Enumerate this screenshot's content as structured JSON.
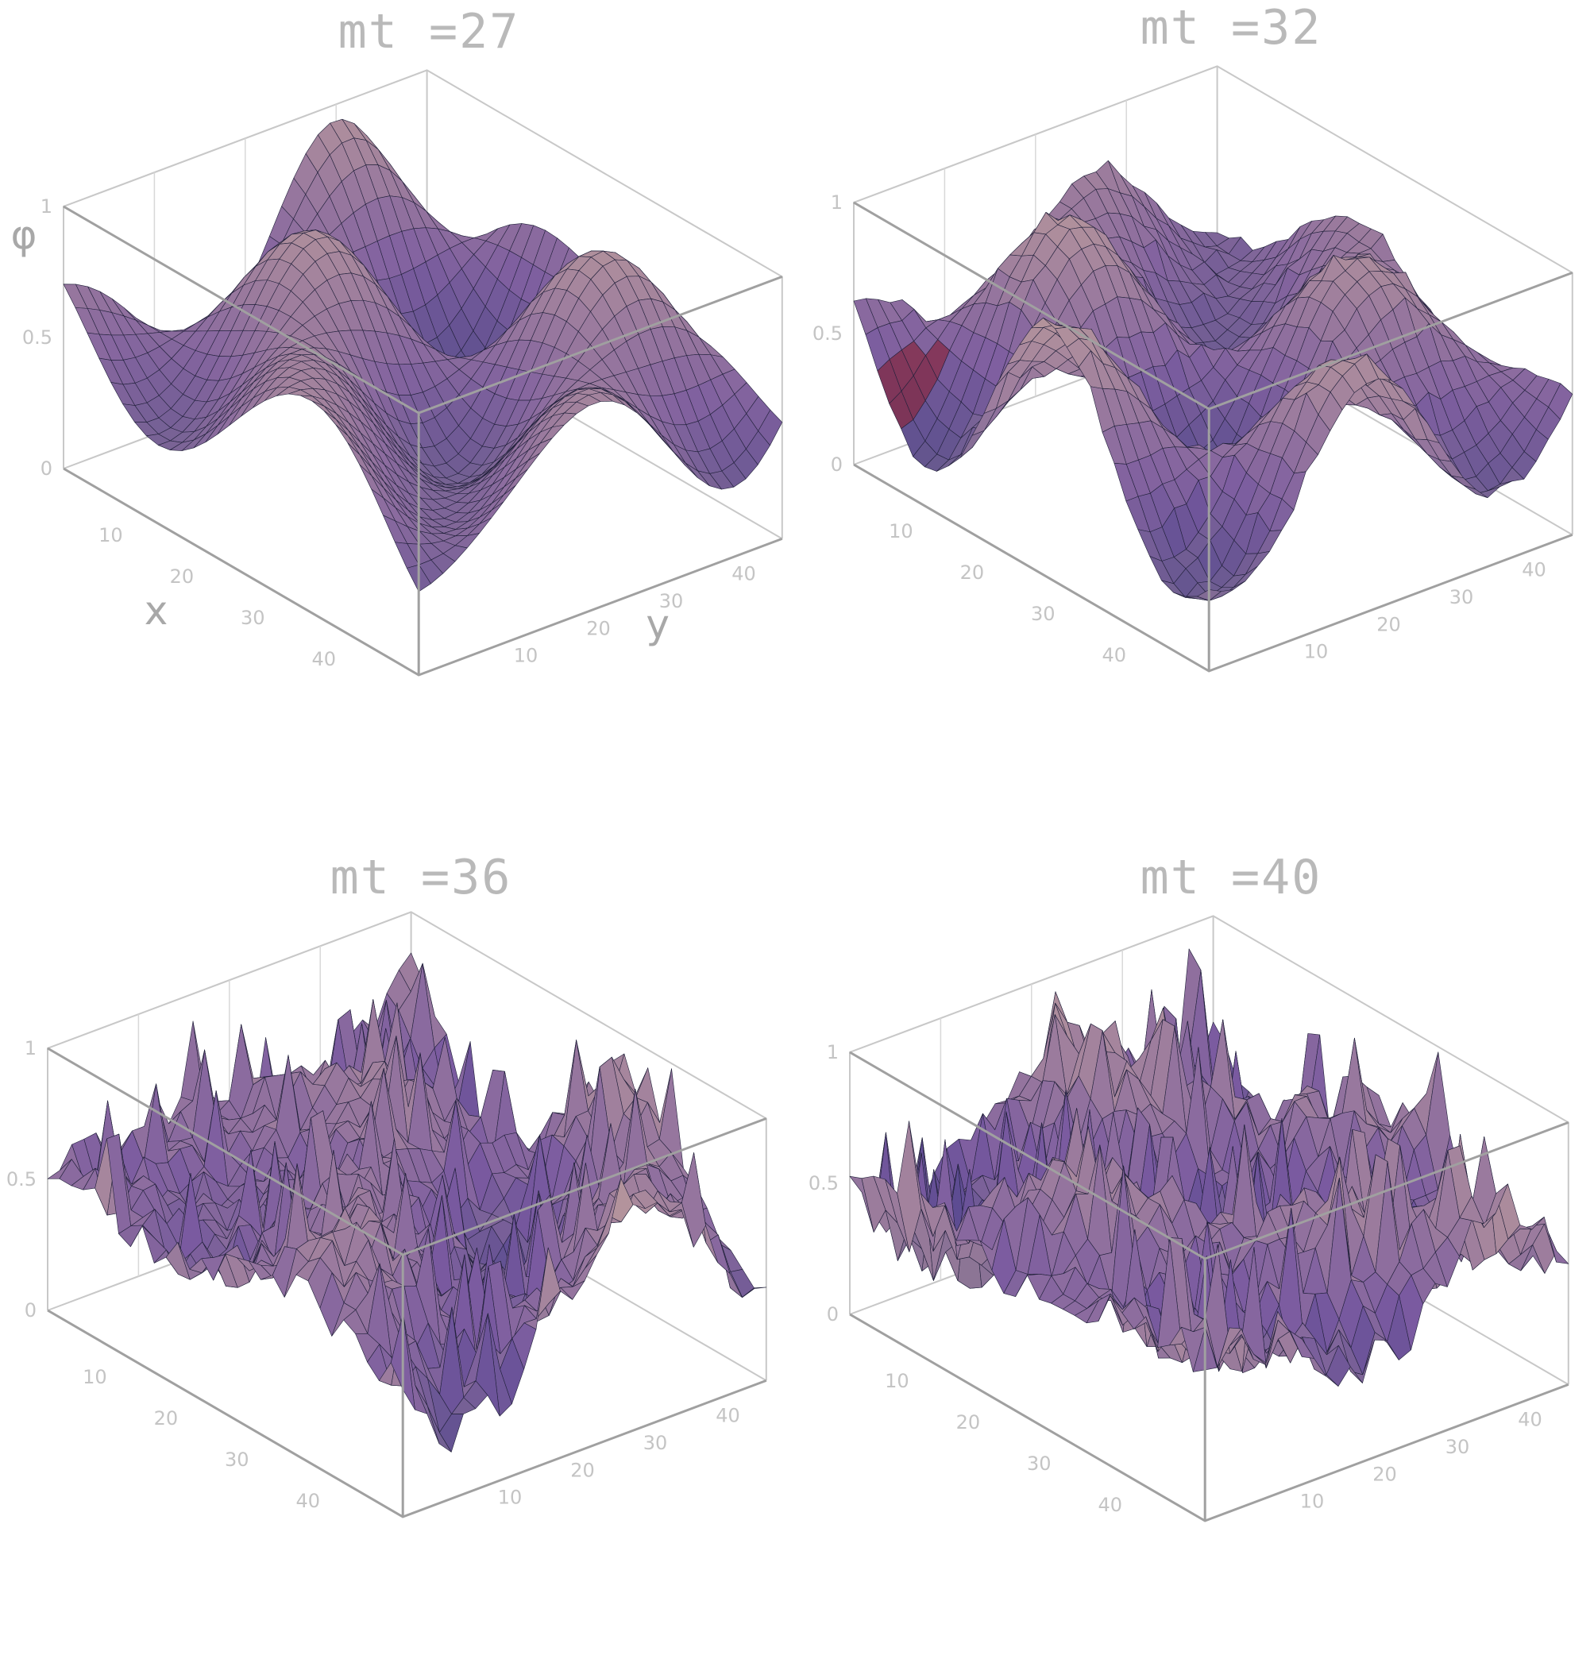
{
  "figure": {
    "colors": {
      "background": "#ffffff",
      "surface_low": "#3c3c82",
      "surface_mid": "#7a5aa0",
      "surface_high": "#c8a89a",
      "surface_accent": "#8a2030",
      "frame": "#a0a0a0"
    }
  },
  "chart_data": [
    {
      "type": "surface3d",
      "title": "mt =27",
      "xlabel": "x",
      "ylabel": "y",
      "zlabel": "φ",
      "x_ticks": [
        "10",
        "20",
        "30",
        "40"
      ],
      "y_ticks": [
        "10",
        "20",
        "30",
        "40"
      ],
      "z_ticks": [
        "0",
        "0.5",
        "1"
      ],
      "zlim": [
        0,
        1
      ],
      "roughness": 0.0,
      "seed": 27
    },
    {
      "type": "surface3d",
      "title": "mt =32",
      "xlabel": "",
      "ylabel": "",
      "zlabel": "",
      "x_ticks": [
        "10",
        "20",
        "30",
        "40"
      ],
      "y_ticks": [
        "10",
        "20",
        "30",
        "40"
      ],
      "z_ticks": [
        "0",
        "0.5",
        "1"
      ],
      "zlim": [
        0,
        1
      ],
      "roughness": 0.05,
      "seed": 32
    },
    {
      "type": "surface3d",
      "title": "mt =36",
      "xlabel": "",
      "ylabel": "",
      "zlabel": "",
      "x_ticks": [
        "10",
        "20",
        "30",
        "40"
      ],
      "y_ticks": [
        "10",
        "20",
        "30",
        "40"
      ],
      "z_ticks": [
        "0",
        "0.5",
        "1"
      ],
      "zlim": [
        0,
        1
      ],
      "roughness": 0.35,
      "seed": 36
    },
    {
      "type": "surface3d",
      "title": "mt =40",
      "xlabel": "",
      "ylabel": "",
      "zlabel": "",
      "x_ticks": [
        "10",
        "20",
        "30",
        "40"
      ],
      "y_ticks": [
        "10",
        "20",
        "30",
        "40"
      ],
      "z_ticks": [
        "0",
        "0.5",
        "1"
      ],
      "zlim": [
        0,
        1
      ],
      "roughness": 0.45,
      "seed": 40
    }
  ]
}
